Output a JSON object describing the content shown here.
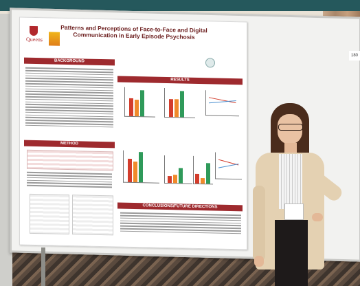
{
  "poster": {
    "title": "Patterns and Perceptions of Face-to-Face and Digital Communication in Early Episode Psychosis",
    "logo_text": "Queens",
    "sections": {
      "background": "BACKGROUND",
      "results": "RESULTS",
      "method": "METHOD",
      "conclusions": "CONCLUSIONS/FUTURE DIRECTIONS"
    }
  },
  "room": {
    "tag": "180"
  },
  "palette": {
    "poster_accent": "#9e2a2e",
    "bar_red": "#d33d2c",
    "bar_orange": "#f08a2b",
    "bar_green": "#2f9a5a"
  }
}
